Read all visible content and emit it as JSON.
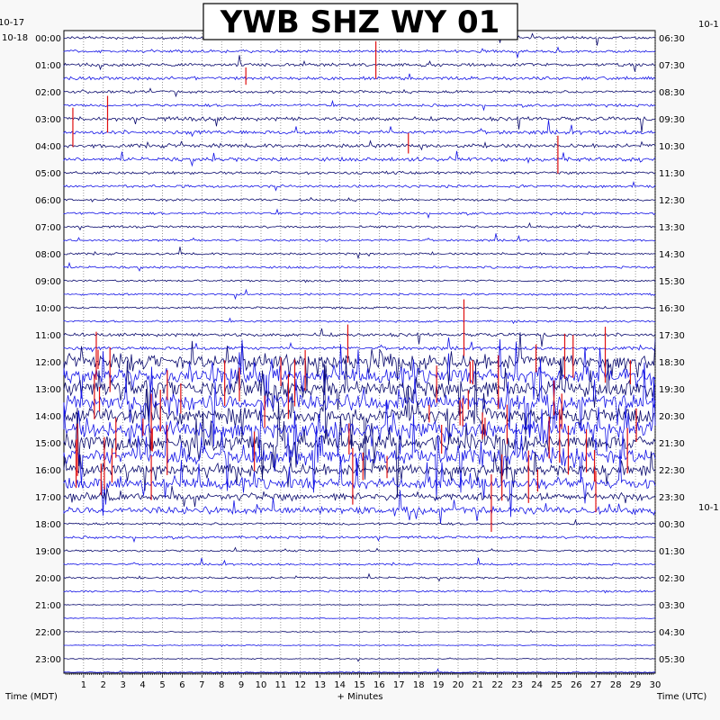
{
  "chart_data": {
    "type": "line",
    "title": "YWB SHZ WY 01",
    "left_top_label": "10-17",
    "left_date_label": "10-18",
    "right_top_label": "10-1",
    "right_mid_label": "10-1",
    "xlabel": "+ Minutes",
    "left_axis_title": "Time (MDT)",
    "right_axis_title": "Time (UTC)",
    "xlim": [
      0,
      30
    ],
    "x_ticks": [
      "1",
      "2",
      "3",
      "4",
      "5",
      "6",
      "7",
      "8",
      "9",
      "10",
      "11",
      "12",
      "13",
      "14",
      "15",
      "16",
      "17",
      "18",
      "19",
      "20",
      "21",
      "22",
      "23",
      "24",
      "25",
      "26",
      "27",
      "28",
      "29",
      "30"
    ],
    "left_hour_labels": [
      "00:00",
      "01:00",
      "02:00",
      "03:00",
      "04:00",
      "05:00",
      "06:00",
      "07:00",
      "08:00",
      "09:00",
      "10:00",
      "11:00",
      "12:00",
      "13:00",
      "14:00",
      "15:00",
      "16:00",
      "17:00",
      "18:00",
      "19:00",
      "20:00",
      "21:00",
      "22:00",
      "23:00"
    ],
    "right_hour_labels": [
      "06:30",
      "07:30",
      "08:30",
      "09:30",
      "10:30",
      "11:30",
      "12:30",
      "13:30",
      "14:30",
      "15:30",
      "16:30",
      "17:30",
      "18:30",
      "19:30",
      "20:30",
      "21:30",
      "22:30",
      "23:30",
      "00:30",
      "01:30",
      "02:30",
      "03:30",
      "04:30",
      "05:30"
    ],
    "traces_per_hour": 2,
    "trace_colors": [
      "#0a0a6e",
      "#1414e6"
    ],
    "clip_color": "#e01010",
    "activity_by_hour": [
      1.1,
      1.3,
      1.1,
      1.6,
      1.6,
      1.1,
      1.0,
      0.9,
      0.9,
      0.8,
      0.8,
      1.4,
      6.0,
      6.5,
      6.5,
      6.5,
      4.5,
      3.0,
      1.0,
      0.8,
      0.8,
      0.4,
      0.4,
      0.4
    ],
    "grid": true
  }
}
